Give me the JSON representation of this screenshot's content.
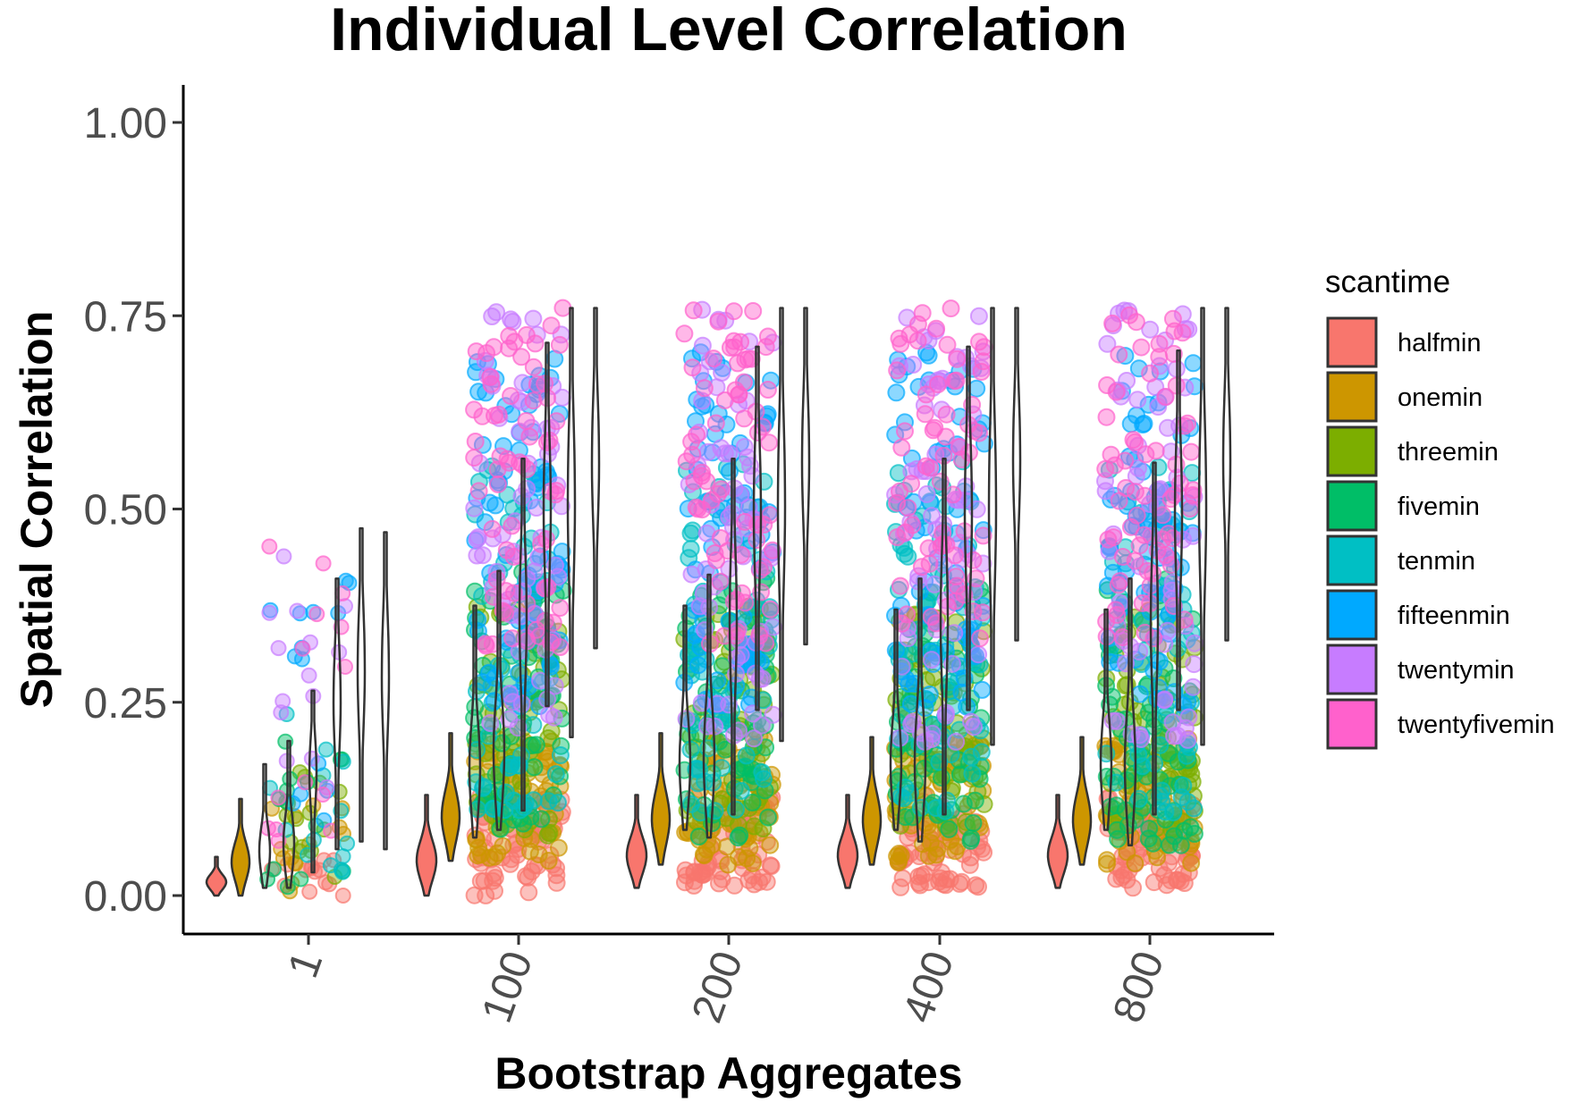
{
  "chart_data": {
    "type": "violin-jitter",
    "title": "Individual Level Correlation",
    "xlabel": "Bootstrap Aggregates",
    "ylabel": "Spatial Correlation",
    "categories": [
      "1",
      "100",
      "200",
      "400",
      "800"
    ],
    "ylim": [
      0,
      1
    ],
    "yticks": [
      "0.00",
      "0.25",
      "0.50",
      "0.75",
      "1.00"
    ],
    "y_tick_values": [
      0,
      0.25,
      0.5,
      0.75,
      1.0
    ],
    "grid": false,
    "legend": {
      "title": "scantime",
      "position": "right",
      "entries": [
        "halfmin",
        "onemin",
        "threemin",
        "fivemin",
        "tenmin",
        "fifteenmin",
        "twentymin",
        "twentyfivemin"
      ]
    },
    "series": [
      {
        "name": "halfmin",
        "color": "#F8766D",
        "ranges": [
          [
            0.0,
            0.05
          ],
          [
            0.0,
            0.13
          ],
          [
            0.01,
            0.13
          ],
          [
            0.01,
            0.13
          ],
          [
            0.01,
            0.13
          ]
        ]
      },
      {
        "name": "onemin",
        "color": "#CD9600",
        "ranges": [
          [
            0.0,
            0.125
          ],
          [
            0.045,
            0.21
          ],
          [
            0.04,
            0.21
          ],
          [
            0.04,
            0.205
          ],
          [
            0.04,
            0.205
          ]
        ]
      },
      {
        "name": "threemin",
        "color": "#7CAE00",
        "ranges": [
          [
            0.01,
            0.17
          ],
          [
            0.075,
            0.375
          ],
          [
            0.085,
            0.375
          ],
          [
            0.085,
            0.37
          ],
          [
            0.085,
            0.37
          ]
        ]
      },
      {
        "name": "fivemin",
        "color": "#00BE67",
        "ranges": [
          [
            0.01,
            0.2
          ],
          [
            0.085,
            0.42
          ],
          [
            0.075,
            0.415
          ],
          [
            0.07,
            0.41
          ],
          [
            0.065,
            0.41
          ]
        ]
      },
      {
        "name": "tenmin",
        "color": "#00BFC4",
        "ranges": [
          [
            0.03,
            0.265
          ],
          [
            0.11,
            0.565
          ],
          [
            0.105,
            0.565
          ],
          [
            0.105,
            0.565
          ],
          [
            0.105,
            0.56
          ]
        ]
      },
      {
        "name": "fifteenmin",
        "color": "#00A9FF",
        "ranges": [
          [
            0.06,
            0.41
          ],
          [
            0.245,
            0.715
          ],
          [
            0.24,
            0.71
          ],
          [
            0.24,
            0.71
          ],
          [
            0.24,
            0.705
          ]
        ]
      },
      {
        "name": "twentymin",
        "color": "#C77CFF",
        "ranges": [
          [
            0.07,
            0.475
          ],
          [
            0.205,
            0.76
          ],
          [
            0.2,
            0.76
          ],
          [
            0.195,
            0.76
          ],
          [
            0.195,
            0.76
          ]
        ]
      },
      {
        "name": "twentyfivemin",
        "color": "#FF61CC",
        "ranges": [
          [
            0.06,
            0.47
          ],
          [
            0.32,
            0.76
          ],
          [
            0.325,
            0.76
          ],
          [
            0.33,
            0.76
          ],
          [
            0.33,
            0.76
          ]
        ]
      }
    ]
  }
}
